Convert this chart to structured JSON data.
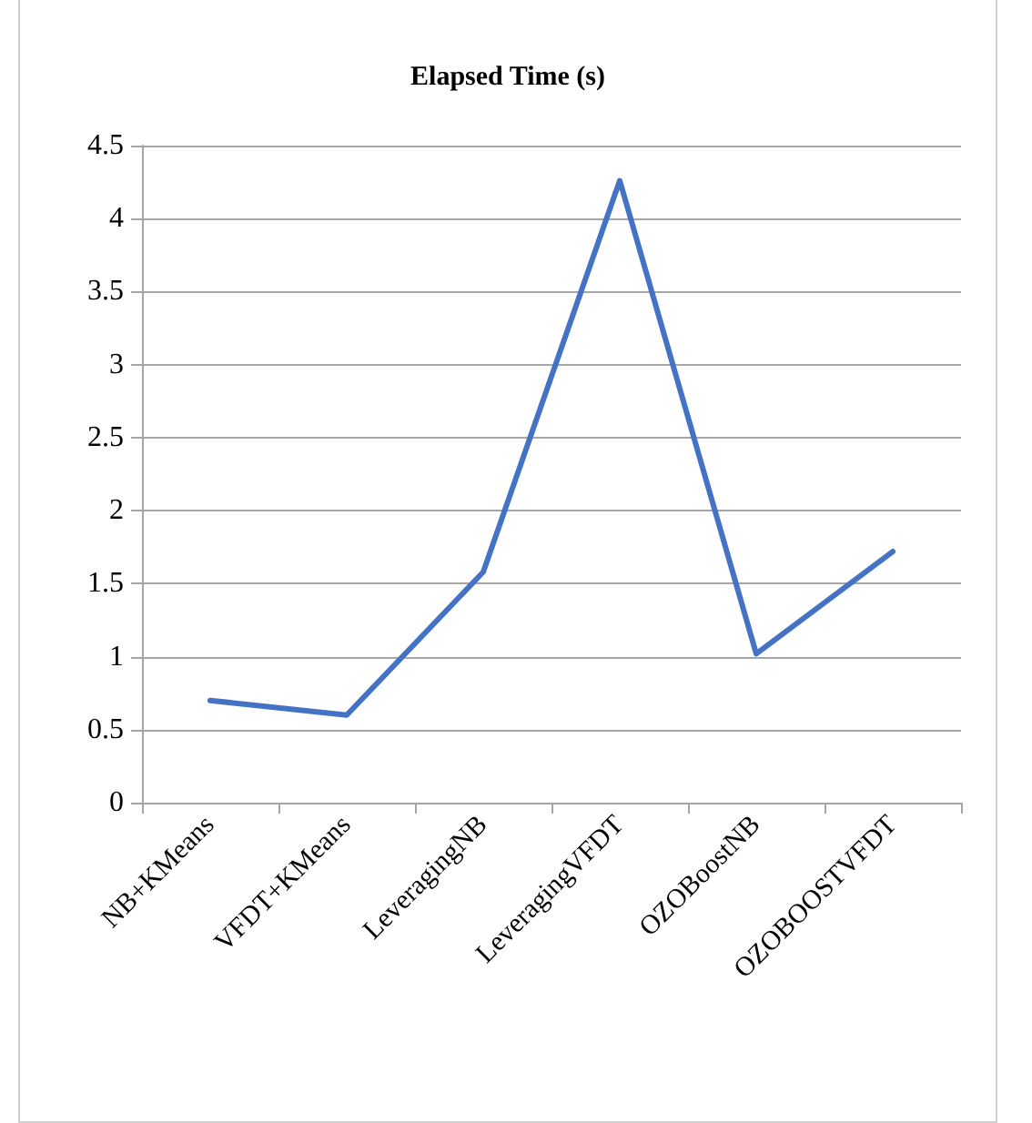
{
  "chart_data": {
    "type": "line",
    "title": "Elapsed Time (s)",
    "categories": [
      "NB+KMeans",
      "VFDT+KMeans",
      "LeveragingNB",
      "LeveragingVFDT",
      "OZOBoostNB",
      "OZOBOOSTVFDT"
    ],
    "series": [
      {
        "color": "#4472c4",
        "values": [
          0.7,
          0.6,
          1.58,
          4.26,
          1.02,
          1.72
        ]
      }
    ],
    "ylim": [
      0,
      4.5
    ],
    "yticks": [
      0,
      0.5,
      1,
      1.5,
      2,
      2.5,
      3,
      3.5,
      4,
      4.5
    ],
    "grid": "y",
    "marker": "none",
    "line_style": "solid"
  }
}
